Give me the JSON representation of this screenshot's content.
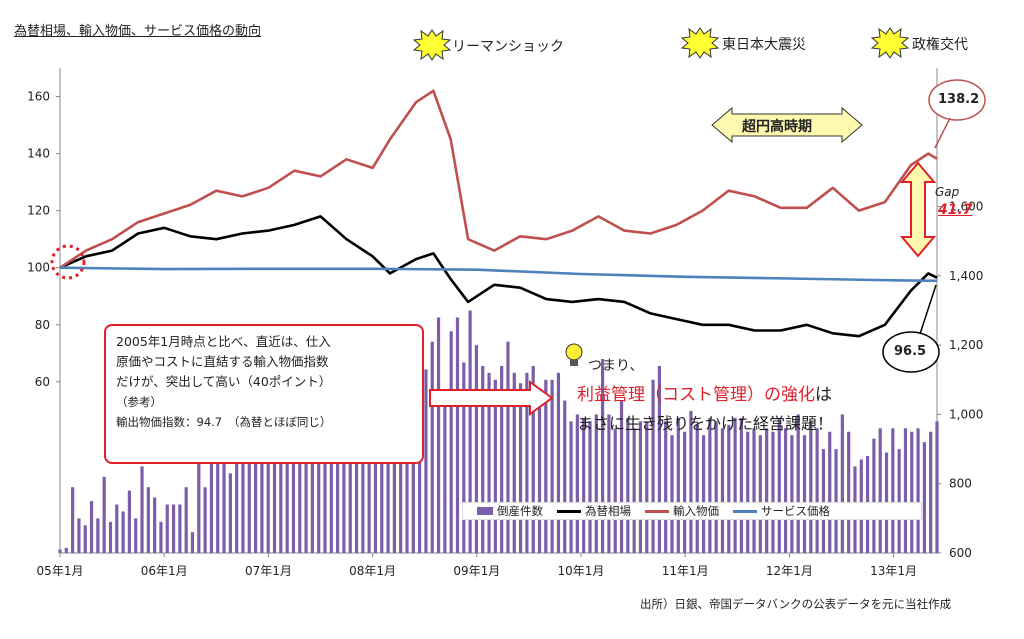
{
  "title": "為替相場、輸入物価、サービス価格の動向",
  "events": [
    {
      "label": "リーマンショック"
    },
    {
      "label": "東日本大震災"
    },
    {
      "label": "政権交代"
    }
  ],
  "annotations": {
    "banner": "超円高時期",
    "gap_label": "Gap",
    "gap_value": "41.7",
    "import_end_value": "138.2",
    "fx_end_value": "96.5",
    "callout_lines": [
      "2005年1月時点と比べ、直近は、仕入",
      "原価やコストに直結する輸入物価指数",
      "だけが、突出して高い（40ポイント）",
      "（参考）",
      "輸出物価指数：94.7　（為替とほぼ同じ）"
    ],
    "conclusion_1": "つまり、",
    "conclusion_2_red": "利益管理（コスト管理）の強化",
    "conclusion_2_black": "は",
    "conclusion_3": "まさに生き残りをかけた経営課題！",
    "source": "出所）日銀、帝国データバンクの公表データを元に当社作成"
  },
  "colors": {
    "bankruptcy": "#7b5ea7",
    "fx": "#000000",
    "import_price": "#c0504d",
    "service_price": "#4f81bd",
    "accent_red": "#e0202a",
    "banner_fill": "#fff9b0"
  },
  "chart_data": {
    "type": "line",
    "x_tick_labels": [
      "05年1月",
      "06年1月",
      "07年1月",
      "08年1月",
      "09年1月",
      "10年1月",
      "11年1月",
      "12年1月",
      "13年1月"
    ],
    "x_start": "2005-01",
    "x_end": "2013-06",
    "y_left": {
      "range": [
        0,
        170
      ],
      "ticks": [
        60,
        80,
        100,
        120,
        140,
        160
      ]
    },
    "y_right": {
      "range": [
        600,
        2000
      ],
      "ticks": [
        "600",
        "800",
        "1,000",
        "1,200",
        "1,400",
        "1,600"
      ]
    },
    "grid": false,
    "legend_position": "bottom-right",
    "series": [
      {
        "name": "倒産件数",
        "type": "bar",
        "axis": "right",
        "color_key": "bankruptcy",
        "values": [
          610,
          615,
          790,
          700,
          680,
          750,
          700,
          820,
          690,
          740,
          720,
          780,
          700,
          850,
          790,
          760,
          690,
          740,
          740,
          740,
          790,
          660,
          880,
          790,
          880,
          860,
          880,
          830,
          910,
          1000,
          900,
          900,
          950,
          1040,
          900,
          920,
          980,
          940,
          900,
          1000,
          1100,
          990,
          910,
          960,
          940,
          960,
          1020,
          1140,
          1040,
          1030,
          1100,
          1080,
          1100,
          1200,
          1100,
          1150,
          1210,
          1120,
          1130,
          1210,
          1280,
          1030,
          1240,
          1280,
          1150,
          1300,
          1200,
          1140,
          1120,
          1100,
          1140,
          1210,
          1120,
          1090,
          1120,
          1140,
          1020,
          1100,
          1100,
          1120,
          1040,
          980,
          1000,
          990,
          980,
          1000,
          1160,
          1000,
          960,
          1040,
          990,
          960,
          980,
          980,
          1100,
          1140,
          980,
          940,
          990,
          950,
          1010,
          970,
          940,
          990,
          980,
          960,
          970,
          990,
          990,
          950,
          960,
          940,
          960,
          950,
          990,
          960,
          940,
          1000,
          940,
          980,
          960,
          900,
          950,
          900,
          1000,
          950,
          850,
          870,
          880,
          930,
          960,
          890,
          960,
          900,
          960,
          950,
          960,
          920,
          950,
          980
        ]
      },
      {
        "name": "為替相場",
        "type": "line",
        "axis": "left",
        "color_key": "fx",
        "x": [
          "2005-01",
          "2005-04",
          "2005-07",
          "2005-10",
          "2006-01",
          "2006-04",
          "2006-07",
          "2006-10",
          "2007-01",
          "2007-04",
          "2007-07",
          "2007-10",
          "2008-01",
          "2008-03",
          "2008-06",
          "2008-08",
          "2008-10",
          "2008-12",
          "2009-03",
          "2009-06",
          "2009-09",
          "2009-12",
          "2010-03",
          "2010-06",
          "2010-09",
          "2010-12",
          "2011-03",
          "2011-06",
          "2011-09",
          "2011-12",
          "2012-03",
          "2012-06",
          "2012-09",
          "2012-12",
          "2013-03",
          "2013-05",
          "2013-06"
        ],
        "values": [
          100,
          104,
          106,
          112,
          114,
          111,
          110,
          112,
          113,
          115,
          118,
          110,
          104,
          98,
          103,
          105,
          96,
          88,
          94,
          93,
          89,
          88,
          89,
          88,
          84,
          82,
          80,
          80,
          78,
          78,
          80,
          77,
          76,
          80,
          92,
          98,
          96.5
        ]
      },
      {
        "name": "輸入物価",
        "type": "line",
        "axis": "left",
        "color_key": "import_price",
        "x": [
          "2005-01",
          "2005-04",
          "2005-07",
          "2005-10",
          "2006-01",
          "2006-04",
          "2006-07",
          "2006-10",
          "2007-01",
          "2007-04",
          "2007-07",
          "2007-10",
          "2008-01",
          "2008-03",
          "2008-06",
          "2008-08",
          "2008-10",
          "2008-12",
          "2009-03",
          "2009-06",
          "2009-09",
          "2009-12",
          "2010-03",
          "2010-06",
          "2010-09",
          "2010-12",
          "2011-03",
          "2011-06",
          "2011-09",
          "2011-12",
          "2012-03",
          "2012-06",
          "2012-09",
          "2012-12",
          "2013-03",
          "2013-05",
          "2013-06"
        ],
        "values": [
          100,
          106,
          110,
          116,
          119,
          122,
          127,
          125,
          128,
          134,
          132,
          138,
          135,
          145,
          158,
          162,
          145,
          110,
          106,
          111,
          110,
          113,
          118,
          113,
          112,
          115,
          120,
          127,
          125,
          121,
          121,
          128,
          120,
          123,
          136,
          140,
          138.2
        ]
      },
      {
        "name": "サービス価格",
        "type": "line",
        "axis": "left",
        "color_key": "service_price",
        "x": [
          "2005-01",
          "2006-01",
          "2007-01",
          "2008-01",
          "2009-01",
          "2010-01",
          "2011-01",
          "2012-01",
          "2013-01",
          "2013-06"
        ],
        "values": [
          100,
          99.5,
          99.6,
          99.6,
          99.3,
          97.8,
          96.8,
          96.2,
          95.6,
          95.4
        ]
      }
    ]
  }
}
